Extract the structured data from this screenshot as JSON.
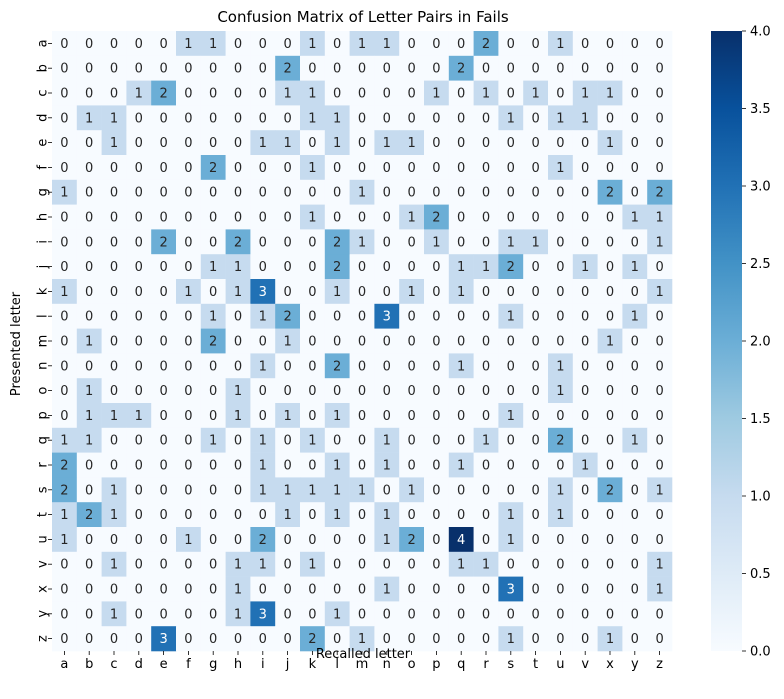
{
  "chart_data": {
    "type": "heatmap",
    "title": "Confusion Matrix of Letter Pairs in Fails",
    "xlabel": "Recalled letter",
    "ylabel": "Presented letter",
    "x_categories": [
      "a",
      "b",
      "c",
      "d",
      "e",
      "f",
      "g",
      "h",
      "i",
      "j",
      "k",
      "l",
      "m",
      "n",
      "o",
      "p",
      "q",
      "r",
      "s",
      "t",
      "u",
      "v",
      "x",
      "y",
      "z"
    ],
    "y_categories": [
      "a",
      "b",
      "c",
      "d",
      "e",
      "f",
      "g",
      "h",
      "i",
      "j",
      "k",
      "l",
      "m",
      "n",
      "o",
      "p",
      "q",
      "r",
      "s",
      "t",
      "u",
      "v",
      "x",
      "y",
      "z"
    ],
    "values": [
      [
        0,
        0,
        0,
        0,
        0,
        1,
        1,
        0,
        0,
        0,
        1,
        0,
        1,
        1,
        0,
        0,
        0,
        2,
        0,
        0,
        1,
        0,
        0,
        0,
        0
      ],
      [
        0,
        0,
        0,
        0,
        0,
        0,
        0,
        0,
        0,
        2,
        0,
        0,
        0,
        0,
        0,
        0,
        2,
        0,
        0,
        0,
        0,
        0,
        0,
        0,
        0
      ],
      [
        0,
        0,
        0,
        1,
        2,
        0,
        0,
        0,
        0,
        1,
        1,
        0,
        0,
        0,
        0,
        1,
        0,
        1,
        0,
        1,
        0,
        1,
        1,
        0,
        0
      ],
      [
        0,
        1,
        1,
        0,
        0,
        0,
        0,
        0,
        0,
        0,
        1,
        1,
        0,
        0,
        0,
        0,
        0,
        0,
        1,
        0,
        1,
        1,
        0,
        0,
        0
      ],
      [
        0,
        0,
        1,
        0,
        0,
        0,
        0,
        0,
        1,
        1,
        0,
        1,
        0,
        1,
        1,
        0,
        0,
        0,
        0,
        0,
        0,
        0,
        1,
        0,
        0
      ],
      [
        0,
        0,
        0,
        0,
        0,
        0,
        2,
        0,
        0,
        0,
        1,
        0,
        0,
        0,
        0,
        0,
        0,
        0,
        0,
        0,
        1,
        0,
        0,
        0,
        0
      ],
      [
        1,
        0,
        0,
        0,
        0,
        0,
        0,
        0,
        0,
        0,
        0,
        0,
        1,
        0,
        0,
        0,
        0,
        0,
        0,
        0,
        0,
        0,
        2,
        0,
        2
      ],
      [
        0,
        0,
        0,
        0,
        0,
        0,
        0,
        0,
        0,
        0,
        1,
        0,
        0,
        0,
        1,
        2,
        0,
        0,
        0,
        0,
        0,
        0,
        0,
        1,
        1
      ],
      [
        0,
        0,
        0,
        0,
        2,
        0,
        0,
        2,
        0,
        0,
        0,
        2,
        1,
        0,
        0,
        1,
        0,
        0,
        1,
        1,
        0,
        0,
        0,
        0,
        1
      ],
      [
        0,
        0,
        0,
        0,
        0,
        0,
        1,
        1,
        0,
        0,
        0,
        2,
        0,
        0,
        0,
        0,
        1,
        1,
        2,
        0,
        0,
        1,
        0,
        1,
        0
      ],
      [
        1,
        0,
        0,
        0,
        0,
        1,
        0,
        1,
        3,
        0,
        0,
        1,
        0,
        0,
        1,
        0,
        1,
        0,
        0,
        0,
        0,
        0,
        0,
        0,
        1
      ],
      [
        0,
        0,
        0,
        0,
        0,
        0,
        1,
        0,
        1,
        2,
        0,
        0,
        0,
        3,
        0,
        0,
        0,
        0,
        1,
        0,
        0,
        0,
        0,
        1,
        0
      ],
      [
        0,
        1,
        0,
        0,
        0,
        0,
        2,
        0,
        0,
        1,
        0,
        0,
        0,
        0,
        0,
        0,
        0,
        0,
        0,
        0,
        0,
        0,
        1,
        0,
        0
      ],
      [
        0,
        0,
        0,
        0,
        0,
        0,
        0,
        0,
        1,
        0,
        0,
        2,
        0,
        0,
        0,
        0,
        1,
        0,
        0,
        0,
        1,
        0,
        0,
        0,
        0
      ],
      [
        0,
        1,
        0,
        0,
        0,
        0,
        0,
        1,
        0,
        0,
        0,
        0,
        0,
        0,
        0,
        0,
        0,
        0,
        0,
        0,
        1,
        0,
        0,
        0,
        0
      ],
      [
        0,
        1,
        1,
        1,
        0,
        0,
        0,
        1,
        0,
        1,
        0,
        1,
        0,
        0,
        0,
        0,
        0,
        0,
        1,
        0,
        0,
        0,
        0,
        0,
        0
      ],
      [
        1,
        1,
        0,
        0,
        0,
        0,
        1,
        0,
        1,
        0,
        1,
        0,
        0,
        1,
        0,
        0,
        0,
        1,
        0,
        0,
        2,
        0,
        0,
        1,
        0
      ],
      [
        2,
        0,
        0,
        0,
        0,
        0,
        0,
        0,
        1,
        0,
        0,
        1,
        0,
        1,
        0,
        0,
        1,
        0,
        0,
        0,
        0,
        1,
        0,
        0,
        0
      ],
      [
        2,
        0,
        1,
        0,
        0,
        0,
        0,
        0,
        1,
        1,
        1,
        1,
        1,
        0,
        1,
        0,
        0,
        0,
        0,
        0,
        1,
        0,
        2,
        0,
        1
      ],
      [
        1,
        2,
        1,
        0,
        0,
        0,
        0,
        0,
        0,
        1,
        0,
        1,
        0,
        1,
        0,
        0,
        0,
        0,
        1,
        0,
        1,
        0,
        0,
        0,
        0
      ],
      [
        1,
        0,
        0,
        0,
        0,
        1,
        0,
        0,
        2,
        0,
        0,
        0,
        0,
        1,
        2,
        0,
        4,
        0,
        1,
        0,
        0,
        0,
        0,
        0,
        0
      ],
      [
        0,
        0,
        1,
        0,
        0,
        0,
        0,
        1,
        1,
        0,
        1,
        0,
        0,
        0,
        0,
        0,
        1,
        1,
        0,
        0,
        0,
        0,
        0,
        0,
        1
      ],
      [
        0,
        0,
        0,
        0,
        0,
        0,
        0,
        1,
        0,
        0,
        0,
        0,
        0,
        1,
        0,
        0,
        0,
        0,
        3,
        0,
        0,
        0,
        0,
        0,
        1
      ],
      [
        0,
        0,
        1,
        0,
        0,
        0,
        0,
        1,
        3,
        0,
        0,
        1,
        0,
        0,
        0,
        0,
        0,
        0,
        0,
        0,
        0,
        0,
        0,
        0,
        0
      ],
      [
        0,
        0,
        0,
        0,
        3,
        0,
        0,
        0,
        0,
        0,
        2,
        0,
        1,
        0,
        0,
        0,
        0,
        0,
        1,
        0,
        0,
        0,
        1,
        0,
        0
      ]
    ],
    "vmin": 0,
    "vmax": 4,
    "colorbar_ticks": [
      "0.0",
      "0.5",
      "1.0",
      "1.5",
      "2.0",
      "2.5",
      "3.0",
      "3.5",
      "4.0"
    ],
    "colormap": "Blues",
    "colors": {
      "low": "#f7fbff",
      "high": "#08306b",
      "text_dark": "#262626",
      "text_light": "#ffffff"
    }
  }
}
